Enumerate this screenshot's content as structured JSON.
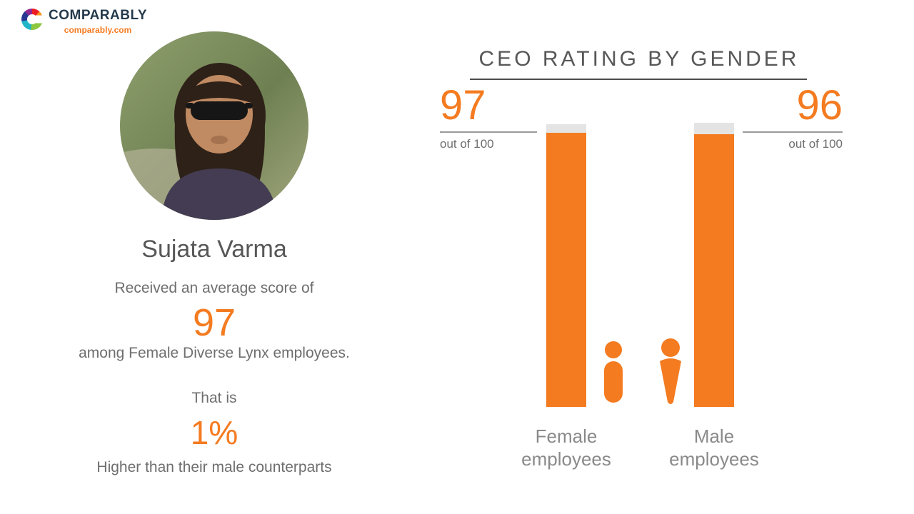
{
  "brand": {
    "name": "COMPARABLY",
    "domain": "comparably.com"
  },
  "profile": {
    "name": "Sujata Varma",
    "score_intro": "Received an average score of",
    "score": "97",
    "score_context": "among Female Diverse Lynx employees.",
    "comparison_intro": "That is",
    "comparison_value": "1%",
    "comparison_context": "Higher than their male counterparts"
  },
  "chart": {
    "title": "CEO RATING BY GENDER",
    "bars": [
      {
        "score": "97",
        "sub": "out of 100",
        "label": "Female\nemployees",
        "fill_pct": 97
      },
      {
        "score": "96",
        "sub": "out of 100",
        "label": "Male\nemployees",
        "fill_pct": 96
      }
    ]
  },
  "chart_data": {
    "type": "bar",
    "title": "CEO RATING BY GENDER",
    "categories": [
      "Female employees",
      "Male employees"
    ],
    "values": [
      97,
      96
    ],
    "ylim": [
      0,
      100
    ],
    "annotations": [
      "97 out of 100",
      "96 out of 100"
    ],
    "bar_color": "#F47B20",
    "legend": "none",
    "grid": false
  },
  "colors": {
    "accent": "#F47B20",
    "heading": "#575757",
    "body": "#6E6E6E",
    "label": "#8A8A8A",
    "bar_track": "#E4E4E4"
  }
}
